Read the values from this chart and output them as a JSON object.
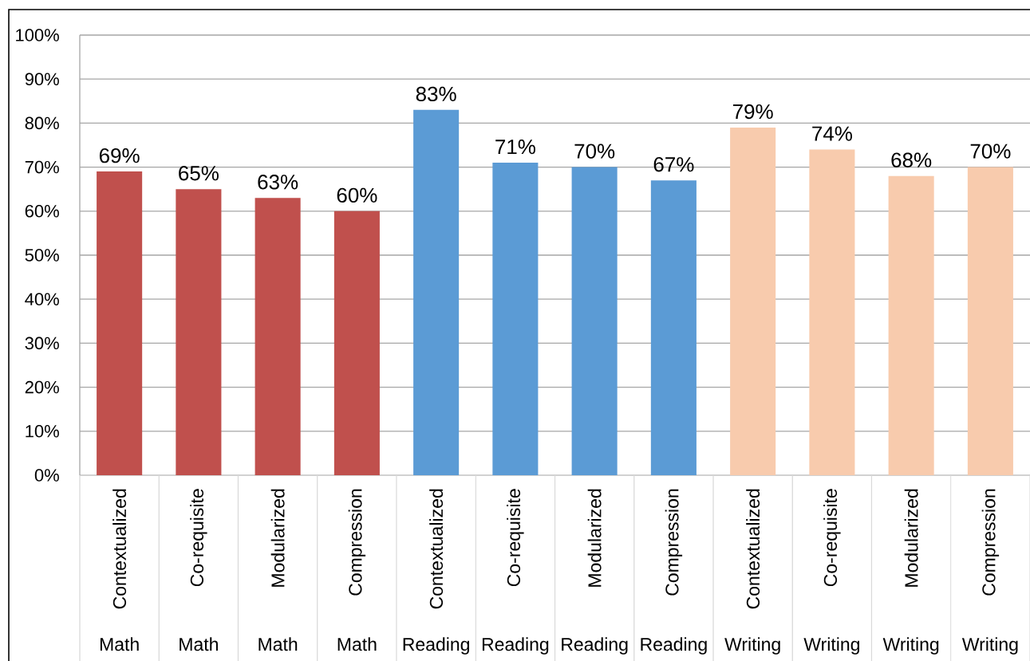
{
  "chart_data": {
    "type": "bar",
    "categories": [
      "Contextualized",
      "Co-requisite",
      "Modularized",
      "Compression",
      "Contextualized",
      "Co-requisite",
      "Modularized",
      "Compression",
      "Contextualized",
      "Co-requisite",
      "Modularized",
      "Compression"
    ],
    "values": [
      69,
      65,
      63,
      60,
      83,
      71,
      70,
      67,
      79,
      74,
      68,
      70
    ],
    "colors": [
      "#c0504d",
      "#c0504d",
      "#c0504d",
      "#c0504d",
      "#5b9bd5",
      "#5b9bd5",
      "#5b9bd5",
      "#5b9bd5",
      "#f8cbad",
      "#f8cbad",
      "#f8cbad",
      "#f8cbad"
    ],
    "value_labels": [
      "69%",
      "65%",
      "63%",
      "60%",
      "83%",
      "71%",
      "70%",
      "67%",
      "79%",
      "74%",
      "68%",
      "70%"
    ],
    "annotations": [
      "Math",
      "Math",
      "Math",
      "Math",
      "Reading",
      "Reading",
      "Reading",
      "Reading",
      "Writing",
      "Writing",
      "Writing",
      "Writing"
    ],
    "ylim": [
      0,
      100
    ],
    "yticks": [
      {
        "value": 0,
        "label": "0%"
      },
      {
        "value": 10,
        "label": "10%"
      },
      {
        "value": 20,
        "label": "20%"
      },
      {
        "value": 30,
        "label": "30%"
      },
      {
        "value": 40,
        "label": "40%"
      },
      {
        "value": 50,
        "label": "50%"
      },
      {
        "value": 60,
        "label": "60%"
      },
      {
        "value": 70,
        "label": "70%"
      },
      {
        "value": 80,
        "label": "80%"
      },
      {
        "value": 90,
        "label": "90%"
      },
      {
        "value": 100,
        "label": "100%"
      }
    ],
    "grid": "y"
  }
}
